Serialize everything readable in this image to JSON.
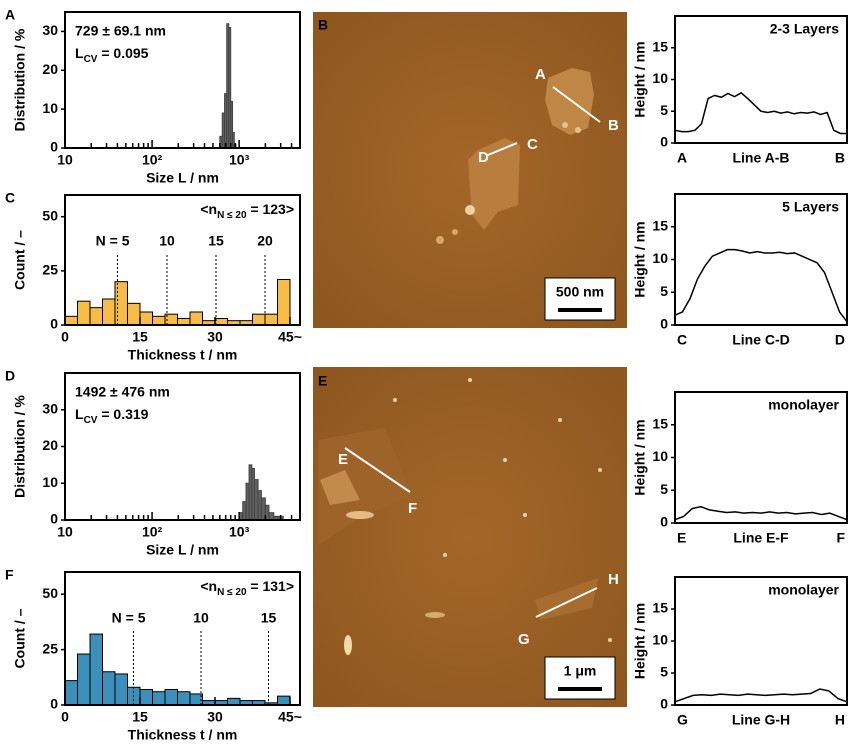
{
  "chart_data": [
    {
      "panel": "A",
      "type": "histogram",
      "xscale": "log",
      "color": "#606060",
      "bins": [
        600,
        640,
        680,
        720,
        760,
        800,
        840,
        880,
        920
      ],
      "values": [
        3,
        9,
        14,
        32,
        31,
        12,
        4,
        1
      ],
      "xlim": [
        10,
        5000
      ],
      "xticks": [
        10,
        {
          "value": 100,
          "label": "10²"
        },
        {
          "value": 1000,
          "label": "10³"
        }
      ],
      "xminorticks": [
        20,
        30,
        40,
        50,
        60,
        70,
        80,
        90,
        200,
        300,
        400,
        500,
        600,
        700,
        800,
        900,
        2000,
        3000,
        4000
      ],
      "ylim": [
        0,
        35
      ],
      "yticks": [
        0,
        10,
        20,
        30
      ],
      "xlabel": "Size L / nm",
      "ylabel": "Distribution / %",
      "stat": "729 ± 69.1 nm",
      "cv": {
        "pre": "L",
        "sub": "CV",
        "post": " = 0.095"
      }
    },
    {
      "panel": "C",
      "type": "histogram",
      "color": "#f7bb47",
      "bins": [
        0,
        2.5,
        5,
        7.5,
        10,
        12.5,
        15,
        17.5,
        20,
        22.5,
        25,
        27.5,
        30,
        32.5,
        35,
        37.5,
        40,
        42.5,
        45
      ],
      "values": [
        4,
        11,
        8,
        12,
        20,
        10,
        6,
        4,
        5,
        3,
        6,
        2,
        3,
        2,
        2,
        5,
        5,
        21
      ],
      "xlim": [
        0,
        47
      ],
      "xticks": [
        0,
        15,
        30,
        {
          "value": 45,
          "label": "45~"
        }
      ],
      "ylim": [
        0,
        60
      ],
      "yticks": [
        0,
        25,
        50
      ],
      "xlabel": "Thickness t / nm",
      "ylabel": "Count / –",
      "note": {
        "pre": "<n",
        "sub": "N ≤ 20",
        "post": " = 123>"
      },
      "markers": [
        {
          "label": "N = 5",
          "value": 10.5
        },
        {
          "label": "10",
          "value": 20.4
        },
        {
          "label": "15",
          "value": 30.2
        },
        {
          "label": "20",
          "value": 40
        }
      ]
    },
    {
      "type": "line",
      "color": "#000000",
      "title": "2-3 Layers",
      "ylabel": "Height / nm",
      "values": [
        2,
        1.8,
        1.8,
        2,
        3,
        7,
        7.5,
        7.2,
        7.8,
        7.3,
        7.9,
        7,
        6,
        5,
        4.8,
        5,
        4.7,
        4.9,
        4.6,
        4.8,
        4.7,
        4.9,
        4.5,
        4.8,
        2,
        1.5,
        1.5
      ],
      "ylim": [
        0,
        20
      ],
      "yticks": [
        0,
        5,
        10,
        15
      ],
      "x_labels": [
        "A",
        "Line A-B",
        "B"
      ]
    },
    {
      "type": "line",
      "color": "#000000",
      "title": "5 Layers",
      "ylabel": "Height / nm",
      "values": [
        1.5,
        2,
        4,
        7,
        9,
        10.5,
        11,
        11.5,
        11.5,
        11.3,
        11,
        11.2,
        11,
        11,
        11.1,
        10.9,
        11,
        10.5,
        10,
        9.5,
        8,
        5,
        2,
        0.5
      ],
      "ylim": [
        0,
        20
      ],
      "yticks": [
        0,
        5,
        10,
        15
      ],
      "x_labels": [
        "C",
        "Line C-D",
        "D"
      ]
    },
    {
      "panel": "D",
      "type": "histogram",
      "xscale": "log",
      "color": "#606060",
      "bins": [
        1000,
        1100,
        1200,
        1300,
        1400,
        1500,
        1650,
        1800,
        2000,
        2200,
        2500,
        2800,
        3200
      ],
      "values": [
        2,
        5,
        10,
        15,
        14,
        11,
        8,
        6,
        4,
        2,
        1,
        1
      ],
      "xlim": [
        10,
        5000
      ],
      "xticks": [
        10,
        {
          "value": 100,
          "label": "10²"
        },
        {
          "value": 1000,
          "label": "10³"
        }
      ],
      "xminorticks": [
        20,
        30,
        40,
        50,
        60,
        70,
        80,
        90,
        200,
        300,
        400,
        500,
        600,
        700,
        800,
        900,
        2000,
        3000,
        4000
      ],
      "ylim": [
        0,
        40
      ],
      "yticks": [
        0,
        10,
        20,
        30
      ],
      "xlabel": "Size L / nm",
      "ylabel": "Distribution / %",
      "stat": "1492 ± 476 nm",
      "cv": {
        "pre": "L",
        "sub": "CV",
        "post": " = 0.319"
      }
    },
    {
      "panel": "F",
      "type": "histogram",
      "color": "#3b8fba",
      "bins": [
        0,
        2.5,
        5,
        7.5,
        10,
        12.5,
        15,
        17.5,
        20,
        22.5,
        25,
        27.5,
        30,
        32.5,
        35,
        37.5,
        40,
        42.5,
        45
      ],
      "values": [
        11,
        23,
        32,
        15,
        14,
        8,
        7,
        6,
        7,
        6,
        5,
        2,
        2,
        3,
        2,
        2,
        1,
        4
      ],
      "xlim": [
        0,
        47
      ],
      "xticks": [
        0,
        15,
        30,
        {
          "value": 45,
          "label": "45~"
        }
      ],
      "ylim": [
        0,
        60
      ],
      "yticks": [
        0,
        25,
        50
      ],
      "xlabel": "Thickness t / nm",
      "ylabel": "Count / –",
      "note": {
        "pre": "<n",
        "sub": "N ≤ 20",
        "post": " = 131>"
      },
      "markers": [
        {
          "label": "N = 5",
          "value": 13.7
        },
        {
          "label": "10",
          "value": 27.2
        },
        {
          "label": "15",
          "value": 40.7
        }
      ]
    },
    {
      "type": "line",
      "color": "#000000",
      "title": "monolayer",
      "ylabel": "Height / nm",
      "values": [
        0.5,
        1,
        2.2,
        2.5,
        2,
        1.8,
        1.6,
        1.7,
        1.5,
        1.6,
        1.5,
        1.7,
        1.5,
        1.6,
        1.4,
        1.5,
        1.6,
        1.3,
        1.5,
        1,
        0.5
      ],
      "ylim": [
        0,
        20
      ],
      "yticks": [
        0,
        5,
        10,
        15
      ],
      "x_labels": [
        "E",
        "Line E-F",
        "F"
      ]
    },
    {
      "type": "line",
      "color": "#000000",
      "title": "monolayer",
      "ylabel": "Height / nm",
      "values": [
        0.5,
        1,
        1.5,
        1.6,
        1.5,
        1.7,
        1.6,
        1.5,
        1.7,
        1.6,
        1.5,
        1.6,
        1.7,
        1.6,
        1.7,
        1.8,
        2.5,
        2.2,
        1,
        0.5
      ],
      "ylim": [
        0,
        20
      ],
      "yticks": [
        0,
        5,
        10,
        15
      ],
      "x_labels": [
        "G",
        "Line G-H",
        "H"
      ]
    }
  ],
  "images": [
    {
      "panel": "B",
      "labels": [
        "A",
        "B",
        "C",
        "D"
      ],
      "scale": "500 nm"
    },
    {
      "panel": "E",
      "labels": [
        "E",
        "F",
        "G",
        "H"
      ],
      "scale": "1 μm"
    }
  ]
}
